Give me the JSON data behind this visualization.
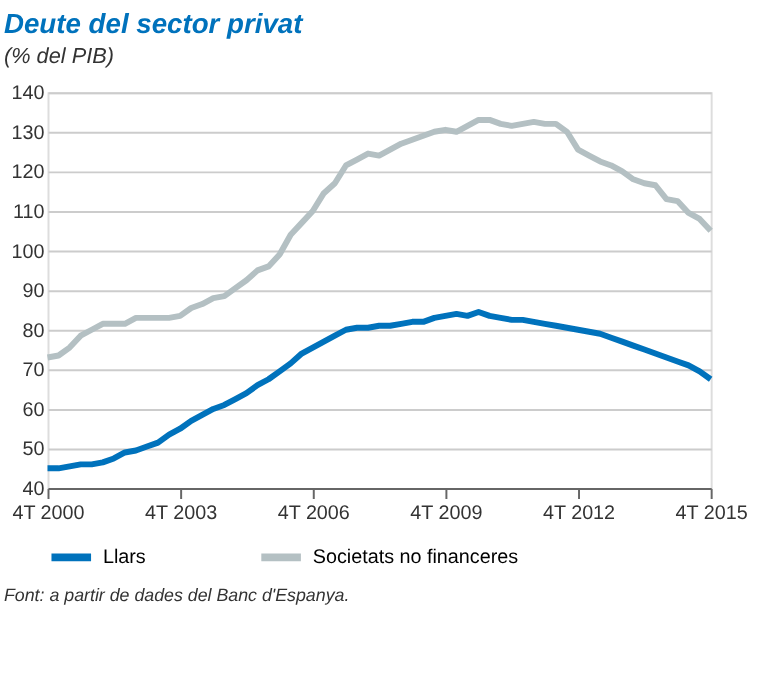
{
  "chart_data": {
    "type": "line",
    "title": "Deute del sector privat",
    "subtitle": "(% del PIB)",
    "categories": [
      "4T 2000",
      null,
      null,
      null,
      null,
      null,
      null,
      null,
      null,
      null,
      null,
      null,
      "4T 2003",
      null,
      null,
      null,
      null,
      null,
      null,
      null,
      null,
      null,
      null,
      null,
      "4T 2006",
      null,
      null,
      null,
      null,
      null,
      null,
      null,
      null,
      null,
      null,
      null,
      "4T 2009",
      null,
      null,
      null,
      null,
      null,
      null,
      null,
      null,
      null,
      null,
      null,
      "4T 2012",
      null,
      null,
      null,
      null,
      null,
      null,
      null,
      null,
      null,
      null,
      null,
      "4T 2015"
    ],
    "series": [
      {
        "name": "Llars",
        "color": "#0072bc",
        "values": [
          45,
          45,
          45.5,
          46,
          46,
          46.5,
          47.5,
          49,
          49.5,
          50.5,
          51.5,
          53.5,
          55,
          57,
          58.5,
          60,
          61,
          62.5,
          64,
          66,
          67.5,
          69.5,
          71.5,
          74,
          75.5,
          77,
          78.5,
          80,
          80.5,
          80.5,
          81,
          81,
          81.5,
          82,
          82,
          83,
          83.5,
          84,
          83.5,
          84.5,
          83.5,
          83,
          82.5,
          82.5,
          82,
          81.5,
          81,
          80.5,
          80,
          79.5,
          79,
          78,
          77,
          76,
          75,
          74,
          73,
          72,
          71,
          69.5,
          67.5
        ]
      },
      {
        "name": "Societats no financeres",
        "color": "#b4c0c3",
        "values": [
          73,
          73.5,
          75.5,
          78.5,
          80,
          81.5,
          81.5,
          81.5,
          83,
          83,
          83,
          83,
          83.5,
          85.5,
          86.5,
          88,
          88.5,
          90.5,
          92.5,
          95,
          96,
          99,
          104,
          107,
          110,
          114.5,
          117,
          121.5,
          123,
          124.5,
          124,
          125.5,
          127,
          128,
          129,
          130,
          130.5,
          130,
          131.5,
          133,
          133,
          132,
          131.5,
          132,
          132.5,
          132,
          132,
          130,
          125.5,
          124,
          122.5,
          121.5,
          120,
          118,
          117,
          116.5,
          113,
          112.5,
          109.5,
          108,
          105
        ]
      }
    ],
    "ylim": [
      40,
      140
    ],
    "yticks": [
      40,
      50,
      60,
      70,
      80,
      90,
      100,
      110,
      120,
      130,
      140
    ],
    "grid": "y",
    "legend": "bottom",
    "line_style": "solid",
    "marker": "none",
    "annotations": [
      "Font: a partir de dades del Banc d'Espanya."
    ]
  }
}
